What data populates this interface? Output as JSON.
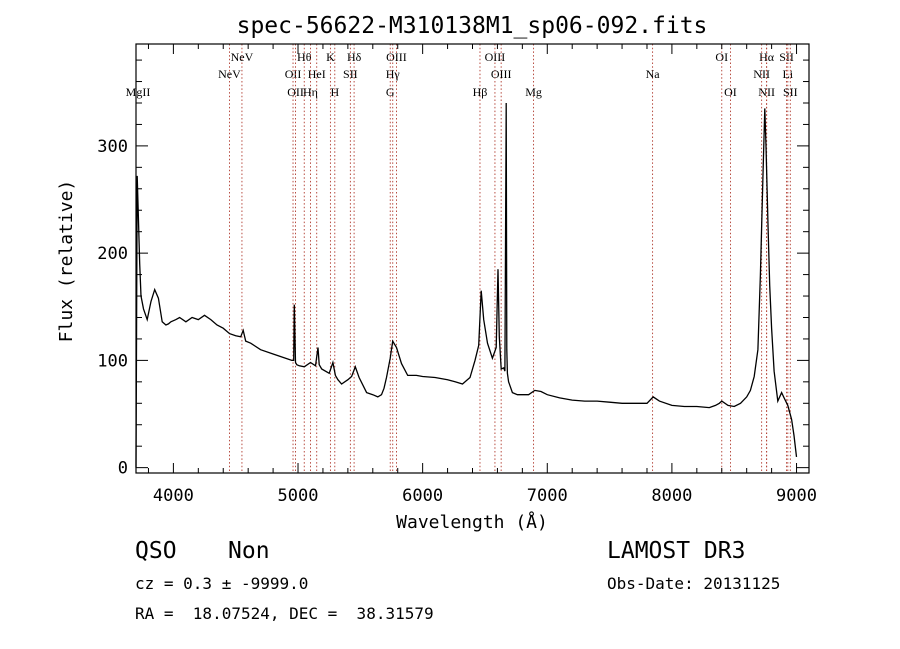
{
  "chart_data": {
    "type": "line",
    "title": "spec-56622-M310138M1_sp06-092.fits",
    "xlabel": "Wavelength (Å)",
    "ylabel": "Flux (relative)",
    "xlim": [
      3700,
      9100
    ],
    "ylim": [
      -5,
      395
    ],
    "xticks": [
      4000,
      5000,
      6000,
      7000,
      8000,
      9000
    ],
    "xtick_labels": [
      "4000",
      "5000",
      "6000",
      "7000",
      "8000",
      "9000"
    ],
    "yticks": [
      0,
      100,
      200,
      300
    ],
    "ytick_labels": [
      "0",
      "100",
      "200",
      "300"
    ],
    "series": [
      {
        "name": "flux",
        "x": [
          3700,
          3710,
          3720,
          3730,
          3740,
          3760,
          3790,
          3820,
          3850,
          3880,
          3910,
          3940,
          3960,
          3980,
          4000,
          4020,
          4050,
          4100,
          4150,
          4200,
          4250,
          4300,
          4350,
          4400,
          4450,
          4500,
          4540,
          4560,
          4580,
          4620,
          4700,
          4800,
          4900,
          4950,
          4965,
          4970,
          4980,
          4990,
          5010,
          5050,
          5100,
          5140,
          5160,
          5170,
          5190,
          5250,
          5280,
          5300,
          5320,
          5350,
          5400,
          5430,
          5460,
          5490,
          5550,
          5600,
          5640,
          5670,
          5690,
          5710,
          5740,
          5760,
          5790,
          5830,
          5880,
          5950,
          6000,
          6100,
          6200,
          6260,
          6320,
          6380,
          6420,
          6450,
          6470,
          6490,
          6520,
          6560,
          6590,
          6605,
          6615,
          6630,
          6650,
          6660,
          6670,
          6675,
          6680,
          6690,
          6720,
          6760,
          6800,
          6850,
          6900,
          6950,
          7000,
          7100,
          7200,
          7300,
          7400,
          7500,
          7600,
          7700,
          7800,
          7850,
          7900,
          8000,
          8100,
          8200,
          8300,
          8350,
          8380,
          8400,
          8450,
          8500,
          8550,
          8600,
          8630,
          8660,
          8690,
          8710,
          8730,
          8745,
          8755,
          8770,
          8785,
          8800,
          8820,
          8850,
          8880,
          8900,
          8930,
          8960,
          8980,
          9000
        ],
        "values": [
          0,
          272,
          230,
          190,
          160,
          148,
          138,
          155,
          166,
          158,
          136,
          133,
          134,
          136,
          137,
          138,
          140,
          136,
          140,
          138,
          142,
          138,
          133,
          130,
          125,
          123,
          122,
          128,
          118,
          116,
          110,
          106,
          102,
          100,
          100,
          152,
          98,
          96,
          95,
          94,
          98,
          95,
          112,
          96,
          92,
          88,
          98,
          86,
          82,
          78,
          82,
          85,
          94,
          84,
          70,
          68,
          66,
          68,
          74,
          84,
          102,
          118,
          112,
          97,
          86,
          86,
          85,
          84,
          82,
          80,
          78,
          84,
          100,
          114,
          165,
          138,
          116,
          102,
          112,
          185,
          122,
          92,
          93,
          90,
          340,
          110,
          88,
          80,
          70,
          68,
          68,
          68,
          72,
          71,
          68,
          65,
          63,
          62,
          62,
          61,
          60,
          60,
          60,
          66,
          62,
          58,
          57,
          57,
          56,
          58,
          60,
          62,
          58,
          57,
          60,
          66,
          72,
          85,
          110,
          180,
          270,
          335,
          300,
          230,
          170,
          130,
          90,
          62,
          70,
          65,
          58,
          45,
          30,
          10
        ]
      }
    ],
    "lines_top": [
      {
        "label": "NeV",
        "x": 4550
      },
      {
        "label": "Hθ",
        "x": 5050
      },
      {
        "label": "K",
        "x": 5260
      },
      {
        "label": "Hδ",
        "x": 5450
      },
      {
        "label": "OIII",
        "x": 5790
      },
      {
        "label": "OIII",
        "x": 6580
      },
      {
        "label": "OI",
        "x": 8400
      },
      {
        "label": "Hα",
        "x": 8760
      },
      {
        "label": "SII",
        "x": 8920
      }
    ],
    "lines_mid": [
      {
        "label": "NeV",
        "x": 4450
      },
      {
        "label": "OII",
        "x": 4960
      },
      {
        "label": "HeI",
        "x": 5150
      },
      {
        "label": "SII",
        "x": 5420
      },
      {
        "label": "Hγ",
        "x": 5760
      },
      {
        "label": "OIII",
        "x": 6630
      },
      {
        "label": "Na",
        "x": 7845
      },
      {
        "label": "NII",
        "x": 8720
      },
      {
        "label": "Li",
        "x": 8930
      }
    ],
    "lines_low": [
      {
        "label": "MgII",
        "x": 3700
      },
      {
        "label": "OII",
        "x": 4980
      },
      {
        "label": "Hη",
        "x": 5100
      },
      {
        "label": "H",
        "x": 5295
      },
      {
        "label": "G",
        "x": 5740
      },
      {
        "label": "Hβ",
        "x": 6460
      },
      {
        "label": "Mg",
        "x": 6890
      },
      {
        "label": "OI",
        "x": 8470
      },
      {
        "label": "NII",
        "x": 8760
      },
      {
        "label": "SII",
        "x": 8950
      }
    ]
  },
  "info": {
    "class": "QSO",
    "subclass": "Non",
    "cz": "cz = 0.3 ± -9999.0",
    "coords": "RA =  18.07524, DEC =  38.31579",
    "survey": "LAMOST DR3",
    "obs_date": "Obs-Date: 20131125"
  }
}
